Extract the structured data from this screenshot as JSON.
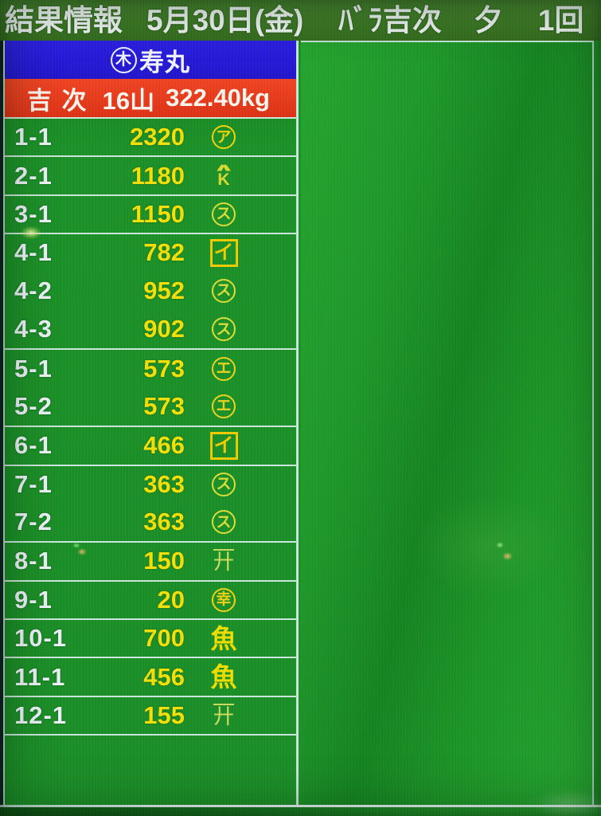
{
  "header": {
    "title": "結果情報",
    "date": "5月30日(金)",
    "item": "ﾊﾞﾗ吉次",
    "session": "夕",
    "round": "1回"
  },
  "seller": {
    "mark_char": "木",
    "name": "寿丸"
  },
  "summary": {
    "fish": "吉 次",
    "lots": "16山",
    "weight": "322.40kg"
  },
  "table": {
    "rows": [
      {
        "label": "1-1",
        "price": "2320",
        "mark": {
          "shape": "circle",
          "char": "ア",
          "color": "#f0d50a"
        },
        "group_start": true
      },
      {
        "label": "2-1",
        "price": "1180",
        "mark": {
          "shape": "roof",
          "char": "K",
          "color": "#d9da34"
        },
        "group_start": true
      },
      {
        "label": "3-1",
        "price": "1150",
        "mark": {
          "shape": "circle",
          "char": "ス",
          "color": "#dcdf38"
        },
        "group_start": true
      },
      {
        "label": "4-1",
        "price": "782",
        "mark": {
          "shape": "box",
          "char": "イ",
          "color": "#f0cc00"
        },
        "group_start": true
      },
      {
        "label": "4-2",
        "price": "952",
        "mark": {
          "shape": "circle",
          "char": "ス",
          "color": "#dcdf38"
        },
        "group_start": false
      },
      {
        "label": "4-3",
        "price": "902",
        "mark": {
          "shape": "circle",
          "char": "ス",
          "color": "#dcdf38"
        },
        "group_start": false
      },
      {
        "label": "5-1",
        "price": "573",
        "mark": {
          "shape": "circle",
          "char": "エ",
          "color": "#ecd41e"
        },
        "group_start": true
      },
      {
        "label": "5-2",
        "price": "573",
        "mark": {
          "shape": "circle",
          "char": "エ",
          "color": "#ecd41e"
        },
        "group_start": false
      },
      {
        "label": "6-1",
        "price": "466",
        "mark": {
          "shape": "box",
          "char": "イ",
          "color": "#f0cc00"
        },
        "group_start": true
      },
      {
        "label": "7-1",
        "price": "363",
        "mark": {
          "shape": "circle",
          "char": "ス",
          "color": "#dcdf38"
        },
        "group_start": true
      },
      {
        "label": "7-2",
        "price": "363",
        "mark": {
          "shape": "circle",
          "char": "ス",
          "color": "#dcdf38"
        },
        "group_start": false
      },
      {
        "label": "8-1",
        "price": "150",
        "mark": {
          "shape": "overline",
          "char": "廾",
          "color": "#cbdd60"
        },
        "group_start": true
      },
      {
        "label": "9-1",
        "price": "20",
        "mark": {
          "shape": "circle",
          "char": "幸",
          "color": "#f2d414"
        },
        "group_start": true
      },
      {
        "label": "10-1",
        "price": "700",
        "mark": {
          "shape": "plain",
          "char": "魚",
          "color": "#f0de00"
        },
        "group_start": true
      },
      {
        "label": "11-1",
        "price": "456",
        "mark": {
          "shape": "plain",
          "char": "魚",
          "color": "#f0de00"
        },
        "group_start": true
      },
      {
        "label": "12-1",
        "price": "155",
        "mark": {
          "shape": "overline",
          "char": "廾",
          "color": "#cbdd60"
        },
        "group_start": true
      }
    ]
  },
  "colors": {
    "topbar_green": "#3d7a26",
    "panel_green": "#1c8f28",
    "right_panel_green": "#20992b",
    "seller_blue": "#2519d6",
    "summary_red": "#e8391d",
    "price_yellow": "#f4e10a",
    "label_white": "#eef4fa",
    "grid_line": "#e6f2f4"
  }
}
